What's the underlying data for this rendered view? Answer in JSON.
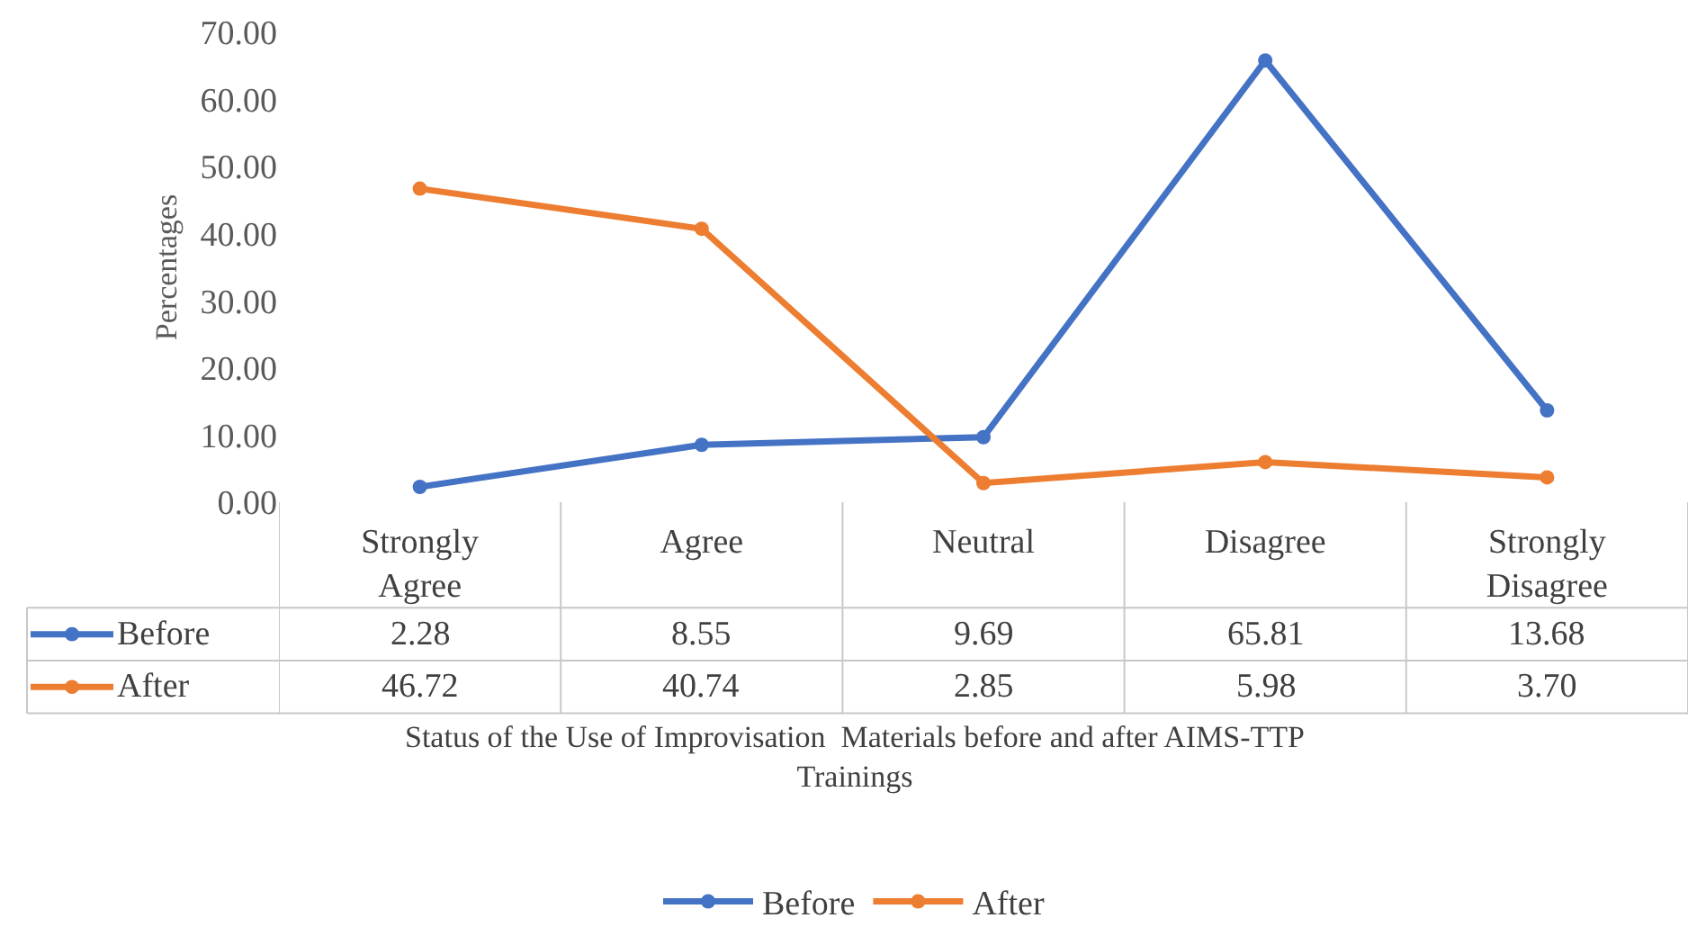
{
  "chart_data": {
    "type": "line",
    "ylabel": "Percentages",
    "xlabel": "Status of the Use of Improvisation  Materials before and after AIMS-TTP Trainings",
    "categories": [
      "Strongly Agree",
      "Agree",
      "Neutral",
      "Disagree",
      "Strongly Disagree"
    ],
    "series": [
      {
        "name": "Before",
        "color": "#4472c4",
        "values": [
          2.28,
          8.55,
          9.69,
          65.81,
          13.68
        ]
      },
      {
        "name": "After",
        "color": "#ed7d31",
        "values": [
          46.72,
          40.74,
          2.85,
          5.98,
          3.7
        ]
      }
    ],
    "value_labels": [
      [
        "2.28",
        "8.55",
        "9.69",
        "65.81",
        "13.68"
      ],
      [
        "46.72",
        "40.74",
        "2.85",
        "5.98",
        "3.70"
      ]
    ],
    "ylim": [
      0,
      70
    ],
    "yticks": [
      {
        "value": 0,
        "label": "0.00"
      },
      {
        "value": 10,
        "label": "10.00"
      },
      {
        "value": 20,
        "label": "20.00"
      },
      {
        "value": 30,
        "label": "30.00"
      },
      {
        "value": 40,
        "label": "40.00"
      },
      {
        "value": 50,
        "label": "50.00"
      },
      {
        "value": 60,
        "label": "60.00"
      },
      {
        "value": 70,
        "label": "70.00"
      }
    ],
    "grid": false,
    "legend": "bottom",
    "marker": "circle",
    "line_style": "solid"
  }
}
